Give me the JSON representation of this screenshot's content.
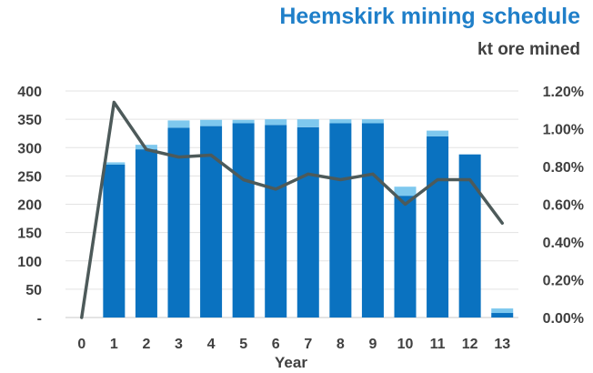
{
  "chart_data": {
    "type": "bar",
    "title": "Heemskirk mining schedule",
    "subtitle": "kt ore mined",
    "xlabel": "Year",
    "ylabel": "",
    "categories": [
      "0",
      "1",
      "2",
      "3",
      "4",
      "5",
      "6",
      "7",
      "8",
      "9",
      "10",
      "11",
      "12",
      "13"
    ],
    "stacked": true,
    "series": [
      {
        "name": "",
        "type": "bar",
        "axis": "left",
        "color": "#0a72c0",
        "values": [
          0,
          270,
          297,
          335,
          338,
          343,
          340,
          336,
          343,
          343,
          215,
          320,
          288,
          8
        ]
      },
      {
        "name": "",
        "type": "bar",
        "axis": "left",
        "color": "#7ec8ee",
        "values": [
          0,
          4,
          8,
          13,
          11,
          6,
          10,
          14,
          7,
          7,
          16,
          10,
          0,
          8
        ]
      },
      {
        "name": "",
        "type": "line",
        "axis": "right",
        "color": "#4d5a5a",
        "values": [
          0.0,
          1.14,
          0.89,
          0.85,
          0.86,
          0.73,
          0.68,
          0.76,
          0.73,
          0.76,
          0.6,
          0.73,
          0.73,
          0.5
        ]
      }
    ],
    "y_left": {
      "min": 0,
      "max": 400,
      "ticks": [
        "-",
        "50",
        "100",
        "150",
        "200",
        "250",
        "300",
        "350",
        "400"
      ]
    },
    "y_right": {
      "min": 0,
      "max": 1.2,
      "ticks": [
        "0.00%",
        "0.20%",
        "0.40%",
        "0.60%",
        "0.80%",
        "1.00%",
        "1.20%"
      ]
    },
    "grid": true,
    "legend": "none"
  }
}
